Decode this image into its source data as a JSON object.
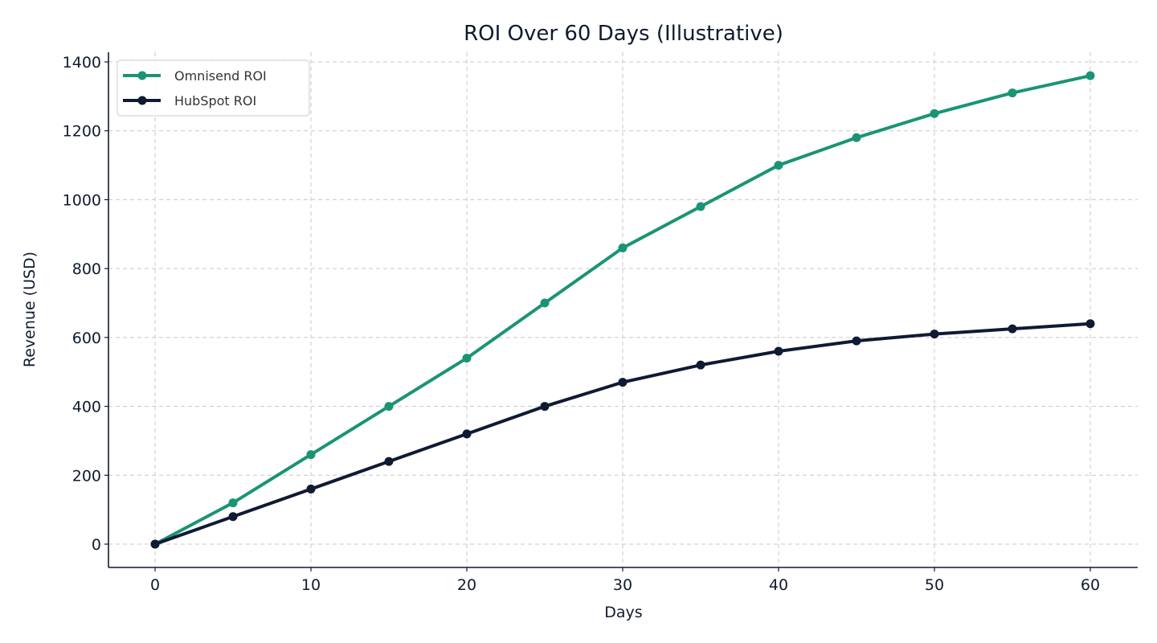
{
  "chart_data": {
    "type": "line",
    "title": "ROI Over 60 Days (Illustrative)",
    "xlabel": "Days",
    "ylabel": "Revenue (USD)",
    "x": [
      0,
      5,
      10,
      15,
      20,
      25,
      30,
      35,
      40,
      45,
      50,
      55,
      60
    ],
    "series": [
      {
        "name": "Omnisend ROI",
        "color": "#1a9475",
        "values": [
          0,
          120,
          260,
          400,
          540,
          700,
          860,
          980,
          1100,
          1180,
          1250,
          1310,
          1360
        ]
      },
      {
        "name": "HubSpot ROI",
        "color": "#0f1a33",
        "values": [
          0,
          80,
          160,
          240,
          320,
          400,
          470,
          520,
          560,
          590,
          610,
          625,
          640
        ]
      }
    ],
    "xticks": [
      0,
      10,
      20,
      30,
      40,
      50,
      60
    ],
    "yticks": [
      0,
      200,
      400,
      600,
      800,
      1000,
      1200,
      1400
    ],
    "xlim": [
      -3,
      63
    ],
    "ylim": [
      -68,
      1430
    ],
    "grid": true,
    "legend_position": "upper left"
  }
}
